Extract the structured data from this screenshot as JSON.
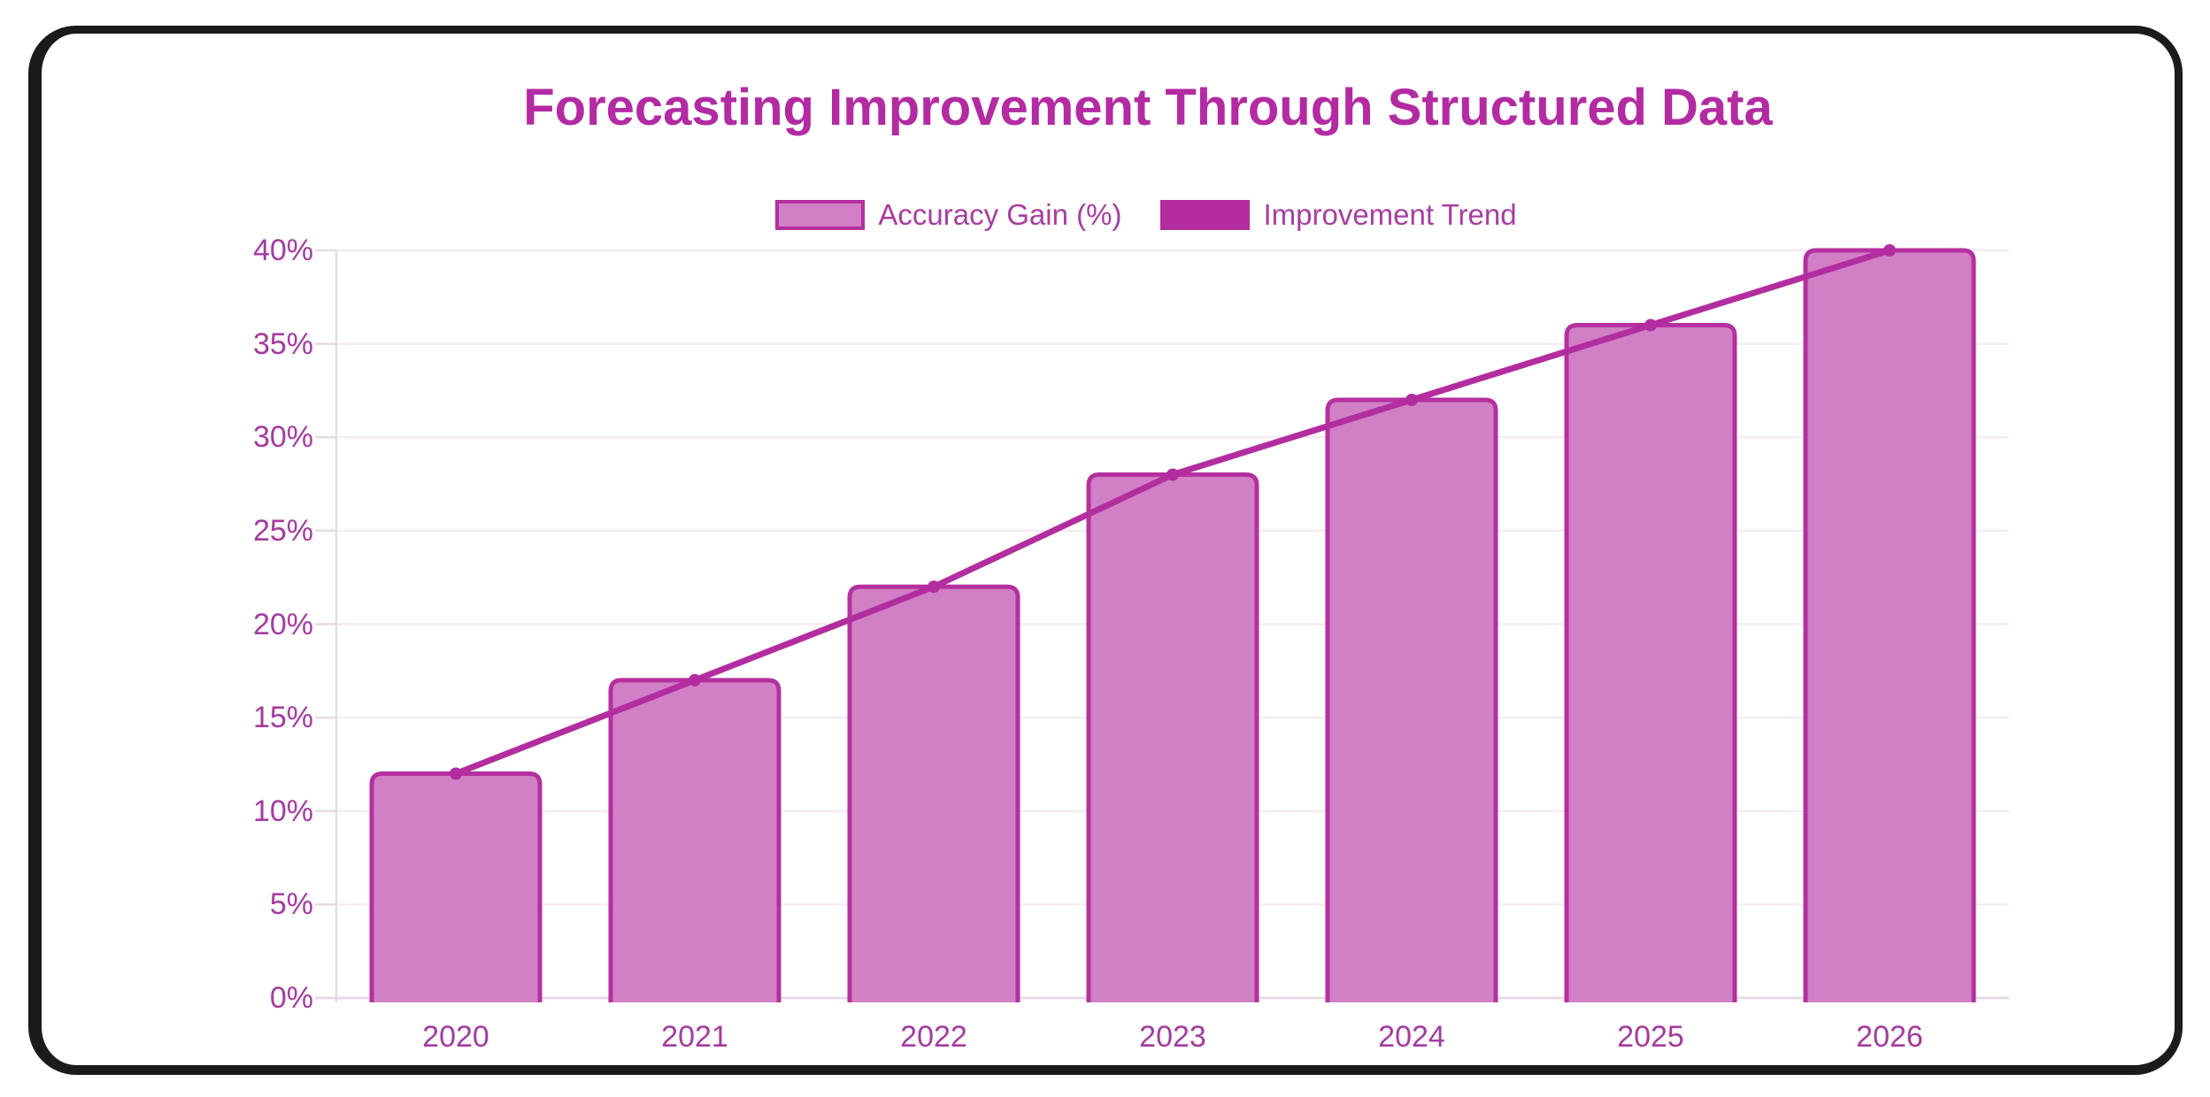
{
  "frame": {
    "border_color": "#1b1b1b",
    "background": "#ffffff"
  },
  "chart_data": {
    "type": "bar",
    "title": "Forecasting Improvement Through Structured Data",
    "categories": [
      "2020",
      "2021",
      "2022",
      "2023",
      "2024",
      "2025",
      "2026"
    ],
    "series": [
      {
        "name": "Accuracy Gain (%)",
        "type": "bar",
        "values": [
          12,
          17,
          22,
          28,
          32,
          36,
          40
        ]
      },
      {
        "name": "Improvement Trend",
        "type": "line",
        "values": [
          12,
          17,
          22,
          28,
          32,
          36,
          40
        ]
      }
    ],
    "xlabel": "",
    "ylabel": "",
    "ylim": [
      0,
      40
    ],
    "ytick_step": 5,
    "ytick_labels": [
      "0%",
      "5%",
      "10%",
      "15%",
      "20%",
      "25%",
      "30%",
      "35%",
      "40%"
    ],
    "grid": true,
    "legend_position": "top",
    "colors": {
      "bar_fill": "#d180c6",
      "bar_border": "#b5309f",
      "line": "#b32da0",
      "title_text": "#b32aa3",
      "legend_text": "#a93ca2",
      "tick_text": "#a53aa1",
      "gridline": "#f6ecf4",
      "axis_line": "#e5dce3"
    }
  }
}
